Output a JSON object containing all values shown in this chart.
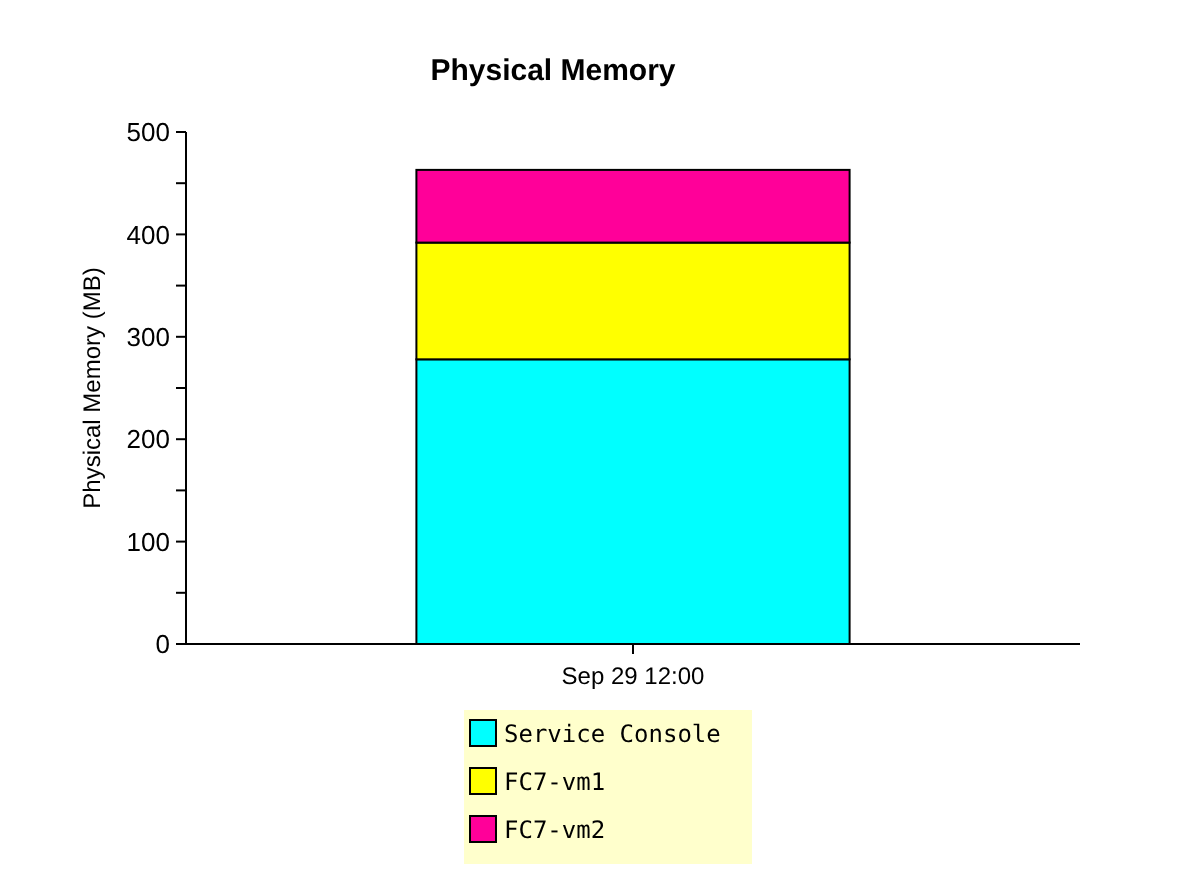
{
  "chart_data": {
    "type": "bar",
    "title": "Physical Memory",
    "ylabel": "Physical Memory (MB)",
    "categories": [
      "Sep 29 12:00"
    ],
    "stacked": true,
    "legend": "bottom",
    "series": [
      {
        "name": "Service Console",
        "color": "#00ffff",
        "values": [
          278
        ]
      },
      {
        "name": "FC7-vm1",
        "color": "#ffff00",
        "values": [
          114
        ]
      },
      {
        "name": "FC7-vm2",
        "color": "#ff0099",
        "values": [
          71
        ]
      }
    ],
    "ylim": [
      0,
      500
    ],
    "yticks": [
      0,
      {
        "value": 50,
        "label": null
      },
      100,
      {
        "value": 150,
        "label": null
      },
      200,
      {
        "value": 250,
        "label": null
      },
      300,
      {
        "value": 350,
        "label": null
      },
      400,
      {
        "value": 450,
        "label": null
      },
      500
    ]
  }
}
